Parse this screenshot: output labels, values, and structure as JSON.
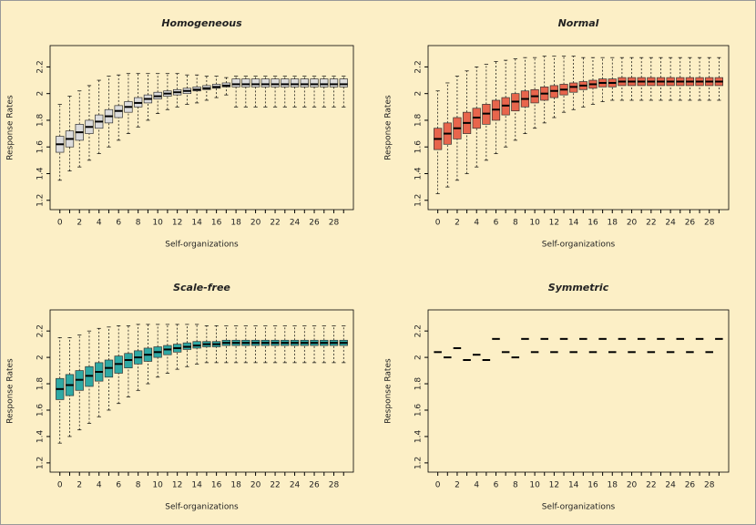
{
  "chart_data": [
    {
      "type": "box",
      "title": "Homogeneous",
      "xlabel": "Self-organizations",
      "ylabel": "Response Rates",
      "color": "#dcdcdc",
      "categories": [
        "0",
        null,
        "2",
        null,
        "4",
        null,
        "6",
        null,
        "8",
        null,
        "10",
        null,
        "12",
        null,
        "14",
        null,
        "16",
        null,
        "18",
        null,
        "20",
        null,
        "22",
        null,
        "24",
        null,
        "26",
        null,
        "28",
        null
      ],
      "ylim": [
        1.13,
        2.36
      ],
      "yticks": [
        1.2,
        1.4,
        1.6,
        1.8,
        2.0,
        2.2
      ],
      "whisker_low": [
        1.35,
        1.42,
        1.45,
        1.5,
        1.55,
        1.6,
        1.65,
        1.7,
        1.75,
        1.8,
        1.85,
        1.88,
        1.9,
        1.92,
        1.93,
        1.95,
        1.97,
        1.99,
        1.9,
        1.9,
        1.9,
        1.9,
        1.9,
        1.9,
        1.9,
        1.9,
        1.9,
        1.9,
        1.9,
        1.9
      ],
      "q1": [
        1.56,
        1.6,
        1.65,
        1.7,
        1.74,
        1.78,
        1.82,
        1.86,
        1.9,
        1.93,
        1.96,
        1.98,
        1.99,
        2.0,
        2.02,
        2.03,
        2.04,
        2.05,
        2.05,
        2.05,
        2.05,
        2.05,
        2.05,
        2.05,
        2.05,
        2.05,
        2.05,
        2.05,
        2.05,
        2.05
      ],
      "median": [
        1.62,
        1.66,
        1.71,
        1.75,
        1.79,
        1.83,
        1.87,
        1.9,
        1.93,
        1.96,
        1.98,
        2.0,
        2.01,
        2.02,
        2.03,
        2.04,
        2.05,
        2.06,
        2.07,
        2.07,
        2.07,
        2.07,
        2.07,
        2.07,
        2.07,
        2.07,
        2.07,
        2.07,
        2.07,
        2.07
      ],
      "q3": [
        1.68,
        1.72,
        1.77,
        1.8,
        1.84,
        1.88,
        1.91,
        1.94,
        1.97,
        1.99,
        2.01,
        2.02,
        2.03,
        2.04,
        2.05,
        2.06,
        2.07,
        2.08,
        2.11,
        2.11,
        2.11,
        2.11,
        2.11,
        2.11,
        2.11,
        2.11,
        2.11,
        2.11,
        2.11,
        2.11
      ],
      "whisker_high": [
        1.92,
        1.98,
        2.02,
        2.06,
        2.1,
        2.13,
        2.14,
        2.15,
        2.15,
        2.15,
        2.15,
        2.15,
        2.15,
        2.14,
        2.14,
        2.13,
        2.13,
        2.12,
        2.13,
        2.13,
        2.13,
        2.13,
        2.13,
        2.13,
        2.13,
        2.13,
        2.13,
        2.13,
        2.13,
        2.13
      ]
    },
    {
      "type": "box",
      "title": "Normal",
      "xlabel": "Self-organizations",
      "ylabel": "Response Rates",
      "color": "#e8654c",
      "categories": [
        "0",
        null,
        "2",
        null,
        "4",
        null,
        "6",
        null,
        "8",
        null,
        "10",
        null,
        "12",
        null,
        "14",
        null,
        "16",
        null,
        "18",
        null,
        "20",
        null,
        "22",
        null,
        "24",
        null,
        "26",
        null,
        "28",
        null
      ],
      "ylim": [
        1.13,
        2.36
      ],
      "yticks": [
        1.2,
        1.4,
        1.6,
        1.8,
        2.0,
        2.2
      ],
      "whisker_low": [
        1.25,
        1.3,
        1.35,
        1.4,
        1.45,
        1.5,
        1.55,
        1.6,
        1.65,
        1.7,
        1.74,
        1.78,
        1.82,
        1.86,
        1.88,
        1.9,
        1.92,
        1.94,
        1.95,
        1.95,
        1.95,
        1.95,
        1.95,
        1.95,
        1.95,
        1.95,
        1.95,
        1.95,
        1.95,
        1.95
      ],
      "q1": [
        1.58,
        1.62,
        1.66,
        1.7,
        1.74,
        1.77,
        1.8,
        1.84,
        1.87,
        1.9,
        1.93,
        1.95,
        1.97,
        1.99,
        2.01,
        2.03,
        2.04,
        2.05,
        2.05,
        2.06,
        2.06,
        2.06,
        2.06,
        2.06,
        2.06,
        2.06,
        2.06,
        2.06,
        2.06,
        2.06
      ],
      "median": [
        1.66,
        1.7,
        1.74,
        1.78,
        1.82,
        1.85,
        1.88,
        1.91,
        1.94,
        1.96,
        1.98,
        2.0,
        2.02,
        2.03,
        2.05,
        2.06,
        2.07,
        2.08,
        2.08,
        2.09,
        2.09,
        2.09,
        2.09,
        2.09,
        2.09,
        2.09,
        2.09,
        2.09,
        2.09,
        2.09
      ],
      "q3": [
        1.74,
        1.78,
        1.82,
        1.86,
        1.89,
        1.92,
        1.95,
        1.97,
        2.0,
        2.02,
        2.03,
        2.05,
        2.06,
        2.07,
        2.08,
        2.09,
        2.1,
        2.11,
        2.11,
        2.12,
        2.12,
        2.12,
        2.12,
        2.12,
        2.12,
        2.12,
        2.12,
        2.12,
        2.12,
        2.12
      ],
      "whisker_high": [
        2.02,
        2.08,
        2.13,
        2.17,
        2.2,
        2.22,
        2.24,
        2.25,
        2.26,
        2.27,
        2.27,
        2.28,
        2.28,
        2.28,
        2.28,
        2.27,
        2.27,
        2.27,
        2.27,
        2.27,
        2.27,
        2.27,
        2.27,
        2.27,
        2.27,
        2.27,
        2.27,
        2.27,
        2.27,
        2.27
      ]
    },
    {
      "type": "box",
      "title": "Scale-free",
      "xlabel": "Self-organizations",
      "ylabel": "Response Rates",
      "color": "#2fa9a4",
      "categories": [
        "0",
        null,
        "2",
        null,
        "4",
        null,
        "6",
        null,
        "8",
        null,
        "10",
        null,
        "12",
        null,
        "14",
        null,
        "16",
        null,
        "18",
        null,
        "20",
        null,
        "22",
        null,
        "24",
        null,
        "26",
        null,
        "28",
        null
      ],
      "ylim": [
        1.13,
        2.36
      ],
      "yticks": [
        1.2,
        1.4,
        1.6,
        1.8,
        2.0,
        2.2
      ],
      "whisker_low": [
        1.35,
        1.4,
        1.45,
        1.5,
        1.55,
        1.6,
        1.65,
        1.7,
        1.75,
        1.8,
        1.85,
        1.88,
        1.91,
        1.93,
        1.95,
        1.96,
        1.96,
        1.96,
        1.96,
        1.96,
        1.96,
        1.96,
        1.96,
        1.96,
        1.96,
        1.96,
        1.96,
        1.96,
        1.96,
        1.96
      ],
      "q1": [
        1.68,
        1.71,
        1.75,
        1.78,
        1.82,
        1.85,
        1.88,
        1.92,
        1.95,
        1.97,
        2.0,
        2.02,
        2.04,
        2.06,
        2.07,
        2.08,
        2.08,
        2.09,
        2.09,
        2.09,
        2.09,
        2.09,
        2.09,
        2.09,
        2.09,
        2.09,
        2.09,
        2.09,
        2.09,
        2.09
      ],
      "median": [
        1.76,
        1.79,
        1.83,
        1.86,
        1.89,
        1.92,
        1.95,
        1.98,
        2.0,
        2.02,
        2.04,
        2.06,
        2.07,
        2.08,
        2.09,
        2.1,
        2.1,
        2.11,
        2.11,
        2.11,
        2.11,
        2.11,
        2.11,
        2.11,
        2.11,
        2.11,
        2.11,
        2.11,
        2.11,
        2.11
      ],
      "q3": [
        1.84,
        1.87,
        1.9,
        1.93,
        1.96,
        1.98,
        2.01,
        2.03,
        2.05,
        2.07,
        2.08,
        2.09,
        2.1,
        2.11,
        2.12,
        2.12,
        2.12,
        2.13,
        2.13,
        2.13,
        2.13,
        2.13,
        2.13,
        2.13,
        2.13,
        2.13,
        2.13,
        2.13,
        2.13,
        2.13
      ],
      "whisker_high": [
        2.15,
        2.15,
        2.17,
        2.2,
        2.22,
        2.23,
        2.24,
        2.24,
        2.25,
        2.25,
        2.25,
        2.25,
        2.25,
        2.25,
        2.25,
        2.24,
        2.24,
        2.24,
        2.24,
        2.24,
        2.24,
        2.24,
        2.24,
        2.24,
        2.24,
        2.24,
        2.24,
        2.24,
        2.24,
        2.24
      ]
    },
    {
      "type": "box",
      "title": "Symmetric",
      "xlabel": "Self-organizations",
      "ylabel": "Response Rates",
      "color": "#000000",
      "categories": [
        "0",
        null,
        "2",
        null,
        "4",
        null,
        "6",
        null,
        "8",
        null,
        "10",
        null,
        "12",
        null,
        "14",
        null,
        "16",
        null,
        "18",
        null,
        "20",
        null,
        "22",
        null,
        "24",
        null,
        "26",
        null,
        "28",
        null
      ],
      "ylim": [
        1.13,
        2.36
      ],
      "yticks": [
        1.2,
        1.4,
        1.6,
        1.8,
        2.0,
        2.2
      ],
      "median": [
        2.04,
        2.0,
        2.07,
        1.98,
        2.02,
        1.98,
        2.14,
        2.04,
        2.0,
        2.14,
        2.04,
        2.14,
        2.04,
        2.14,
        2.04,
        2.14,
        2.04,
        2.14,
        2.04,
        2.14,
        2.04,
        2.14,
        2.04,
        2.14,
        2.04,
        2.14,
        2.04,
        2.14,
        2.04,
        2.14
      ]
    }
  ]
}
